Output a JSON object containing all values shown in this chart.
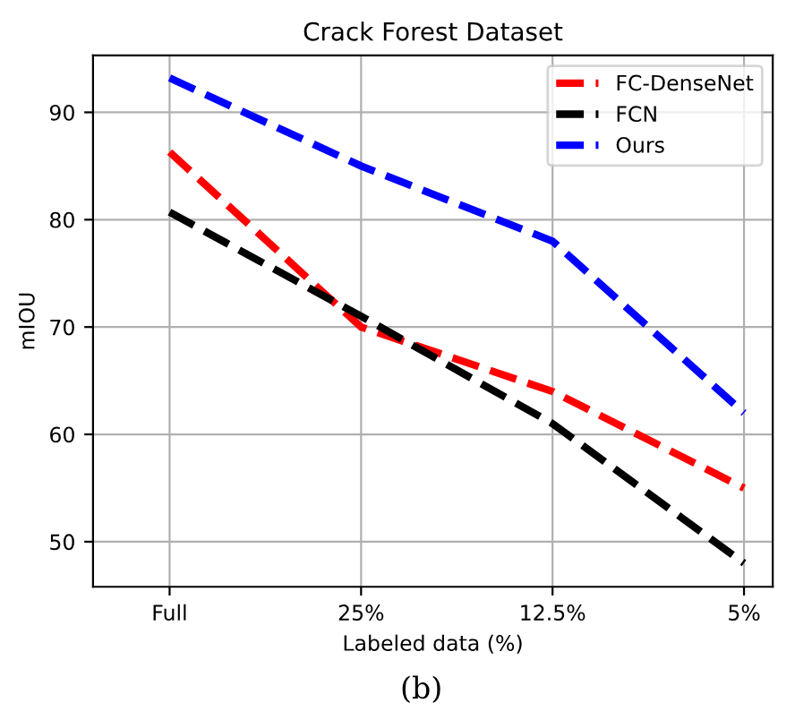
{
  "chart_data": {
    "type": "line",
    "title": "Crack Forest Dataset",
    "xlabel": "Labeled data (%)",
    "ylabel": "mIOU",
    "categories": [
      "Full",
      "25%",
      "12.5%",
      "5%"
    ],
    "series": [
      {
        "name": "FC-DenseNet",
        "color": "#ff0000",
        "values": [
          86.3,
          70,
          64,
          55
        ]
      },
      {
        "name": "FCN",
        "color": "#000000",
        "values": [
          80.7,
          71,
          61,
          48
        ]
      },
      {
        "name": "Ours",
        "color": "#0000ff",
        "values": [
          93.2,
          85,
          78,
          62
        ]
      }
    ],
    "ylim": [
      45.8,
      95.3
    ],
    "yticks": [
      50,
      60,
      70,
      80,
      90
    ],
    "grid": true,
    "legend": "top right",
    "line_style": "dashed",
    "marker": "none",
    "annotations": [
      "(b)"
    ]
  }
}
